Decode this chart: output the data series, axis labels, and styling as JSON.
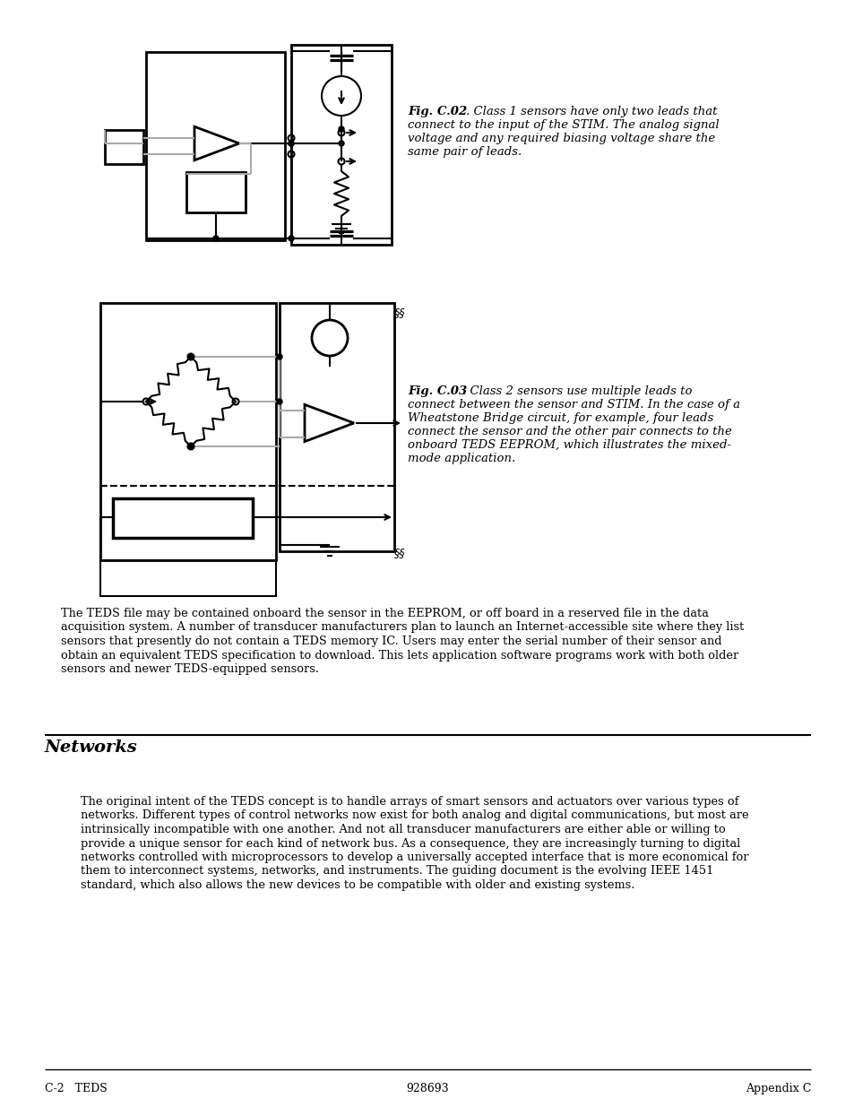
{
  "bg_color": "#ffffff",
  "fig_width": 9.54,
  "fig_height": 12.35,
  "fig_c02_caption_bold": "Fig. C.02",
  "fig_c02_caption_rest": ". Class 1 sensors have only two leads that\nconnect to the input of the STIM. The analog signal\nvoltage and any required biasing voltage share the\nsame pair of leads.",
  "fig_c03_caption_bold": "Fig. C.03",
  "fig_c03_caption_rest": ". Class 2 sensors use multiple leads to\nconnect between the sensor and STIM. In the case of a\nWheatstone Bridge circuit, for example, four leads\nconnect the sensor and the other pair connects to the\nonboard TEDS EEPROM, which illustrates the mixed-\nmode application.",
  "para1_lines": [
    "The TEDS file may be contained onboard the sensor in the EEPROM, or off board in a reserved file in the data",
    "acquisition system. A number of transducer manufacturers plan to launch an Internet-accessible site where they list",
    "sensors that presently do not contain a TEDS memory IC. Users may enter the serial number of their sensor and",
    "obtain an equivalent TEDS specification to download. This lets application software programs work with both older",
    "sensors and newer TEDS-equipped sensors."
  ],
  "section_title": "Networks",
  "para2_lines": [
    "The original intent of the TEDS concept is to handle arrays of smart sensors and actuators over various types of",
    "networks. Different types of control networks now exist for both analog and digital communications, but most are",
    "intrinsically incompatible with one another. And not all transducer manufacturers are either able or willing to",
    "provide a unique sensor for each kind of network bus. As a consequence, they are increasingly turning to digital",
    "networks controlled with microprocessors to develop a universally accepted interface that is more economical for",
    "them to interconnect systems, networks, and instruments. The guiding document is the evolving IEEE 1451",
    "standard, which also allows the new devices to be compatible with older and existing systems."
  ],
  "footer_left": "C-2   TEDS",
  "footer_center": "928693",
  "footer_right": "Appendix C",
  "lc": "#000000",
  "gc": "#aaaaaa"
}
